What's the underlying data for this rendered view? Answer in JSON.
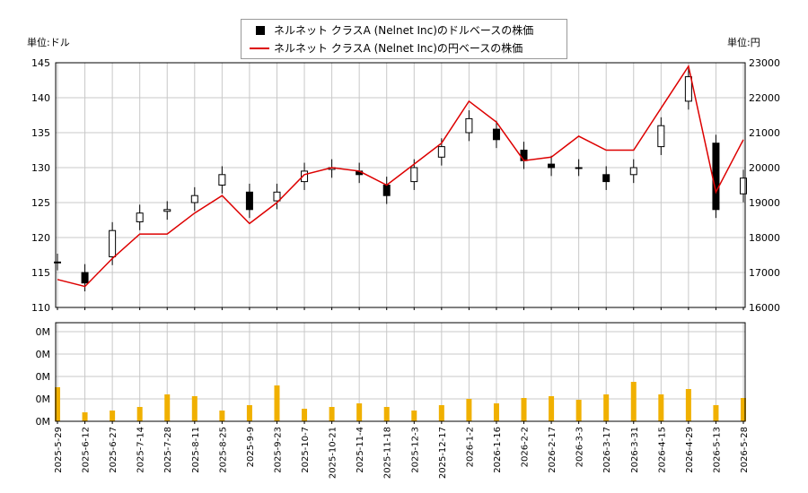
{
  "legend": {
    "usd_label": "ネルネット クラスA (Nelnet Inc)のドルベースの株価",
    "jpy_label": "ネルネット クラスA (Nelnet Inc)の円ベースの株価"
  },
  "units": {
    "left": "単位:ドル",
    "right": "単位:円"
  },
  "colors": {
    "usd": "#000000",
    "jpy": "#dd0000",
    "volume": "#f0b000",
    "grid": "#c8c8c8"
  },
  "chart_data": {
    "type": "line",
    "price_axis": {
      "left_ticks": [
        "145",
        "140",
        "135",
        "130",
        "125",
        "120",
        "115",
        "110"
      ],
      "left_range": [
        110,
        145
      ],
      "right_ticks": [
        "23000",
        "22000",
        "21000",
        "20000",
        "19000",
        "18000",
        "17000",
        "16000"
      ],
      "right_range": [
        16000,
        23000
      ]
    },
    "volume_axis": {
      "ticks": [
        "0M",
        "0M",
        "0M",
        "0M",
        "0M"
      ]
    },
    "x_ticks": [
      "2025-5-29",
      "2025-6-12",
      "2025-6-27",
      "2025-7-14",
      "2025-7-28",
      "2025-8-11",
      "2025-8-25",
      "2025-9-9",
      "2025-9-23",
      "2025-10-7",
      "2025-10-21",
      "2025-11-4",
      "2025-11-18",
      "2025-12-3",
      "2025-12-17",
      "2026-1-2",
      "2026-1-16",
      "2026-2-2",
      "2026-2-17",
      "2026-3-3",
      "2026-3-17",
      "2026-3-31",
      "2026-4-15",
      "2026-4-29",
      "2026-5-13",
      "2026-5-28"
    ],
    "series": [
      {
        "key": "usd",
        "name": "ネルネット クラスA (Nelnet Inc)のドルベースの株価",
        "style": "candlestick",
        "x": [
          "2025-5-29",
          "2025-6-12",
          "2025-6-27",
          "2025-7-14",
          "2025-7-28",
          "2025-8-11",
          "2025-8-25",
          "2025-9-9",
          "2025-9-23",
          "2025-10-7",
          "2025-10-21",
          "2025-11-4",
          "2025-11-18",
          "2025-12-3",
          "2025-12-17",
          "2026-1-2",
          "2026-1-16",
          "2026-2-2",
          "2026-2-17",
          "2026-3-3",
          "2026-3-17",
          "2026-3-31",
          "2026-4-15",
          "2026-4-29",
          "2026-5-13",
          "2026-5-28"
        ],
        "values": [
          116.5,
          113.5,
          121,
          123.5,
          124,
          126,
          129,
          124,
          126.5,
          129.5,
          130,
          129,
          126,
          130,
          133,
          137,
          134,
          131,
          130,
          130,
          128,
          130,
          136,
          143,
          124,
          128.5
        ]
      },
      {
        "key": "jpy",
        "name": "ネルネット クラスA (Nelnet Inc)の円ベースの株価",
        "style": "line",
        "x": [
          "2025-5-29",
          "2025-6-12",
          "2025-6-27",
          "2025-7-14",
          "2025-7-28",
          "2025-8-11",
          "2025-8-25",
          "2025-9-9",
          "2025-9-23",
          "2025-10-7",
          "2025-10-21",
          "2025-11-4",
          "2025-11-18",
          "2025-12-3",
          "2025-12-17",
          "2026-1-2",
          "2026-1-16",
          "2026-2-2",
          "2026-2-17",
          "2026-3-3",
          "2026-3-17",
          "2026-3-31",
          "2026-4-15",
          "2026-4-29",
          "2026-5-13",
          "2026-5-28"
        ],
        "values": [
          16800,
          16600,
          17400,
          18100,
          18100,
          18700,
          19200,
          18400,
          19000,
          19800,
          20000,
          19900,
          19500,
          20100,
          20700,
          21900,
          21300,
          20200,
          20300,
          20900,
          20500,
          20500,
          21700,
          22900,
          19300,
          20800
        ]
      }
    ],
    "volume": {
      "values": [
        0.38,
        0.1,
        0.12,
        0.16,
        0.3,
        0.28,
        0.12,
        0.18,
        0.4,
        0.14,
        0.16,
        0.2,
        0.16,
        0.12,
        0.18,
        0.25,
        0.2,
        0.26,
        0.28,
        0.24,
        0.3,
        0.44,
        0.3,
        0.36,
        0.18,
        0.26
      ]
    },
    "grid": true,
    "legend_position": "top-center"
  }
}
